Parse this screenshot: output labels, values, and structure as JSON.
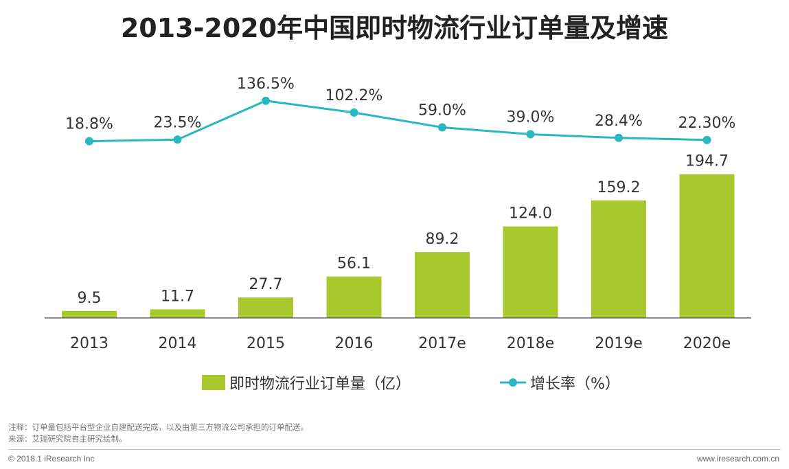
{
  "chart_data": {
    "type": "bar",
    "title": "2013-2020年中国即时物流行业订单量及增速",
    "categories": [
      "2013",
      "2014",
      "2015",
      "2016",
      "2017e",
      "2018e",
      "2019e",
      "2020e"
    ],
    "series": [
      {
        "name": "即时物流行业订单量（亿）",
        "type": "bar",
        "values": [
          9.5,
          11.7,
          27.7,
          56.1,
          89.2,
          124.0,
          159.2,
          194.7
        ],
        "labels": [
          "9.5",
          "11.7",
          "27.7",
          "56.1",
          "89.2",
          "124.0",
          "159.2",
          "194.7"
        ]
      },
      {
        "name": "增长率（%）",
        "type": "line",
        "values": [
          18.8,
          23.5,
          136.5,
          102.2,
          59.0,
          39.0,
          28.4,
          22.3
        ],
        "labels": [
          "18.8%",
          "23.5%",
          "136.5%",
          "102.2%",
          "59.0%",
          "39.0%",
          "28.4%",
          "22.30%"
        ]
      }
    ],
    "bar_ylim": [
      0,
      200
    ],
    "line_ylim": [
      0,
      140
    ],
    "grid": false,
    "legend_position": "bottom-center",
    "colors": {
      "bar": "#a8c92d",
      "line": "#27b8c2",
      "axis": "#666666"
    }
  },
  "footer": {
    "note": "注释：订单量包括平台型企业自建配送完成，以及由第三方物流公司承担的订单配送。",
    "source": "来源：艾瑞研究院自主研究绘制。",
    "copyright": "© 2018.1 iResearch Inc",
    "website": "www.iresearch.com.cn"
  }
}
